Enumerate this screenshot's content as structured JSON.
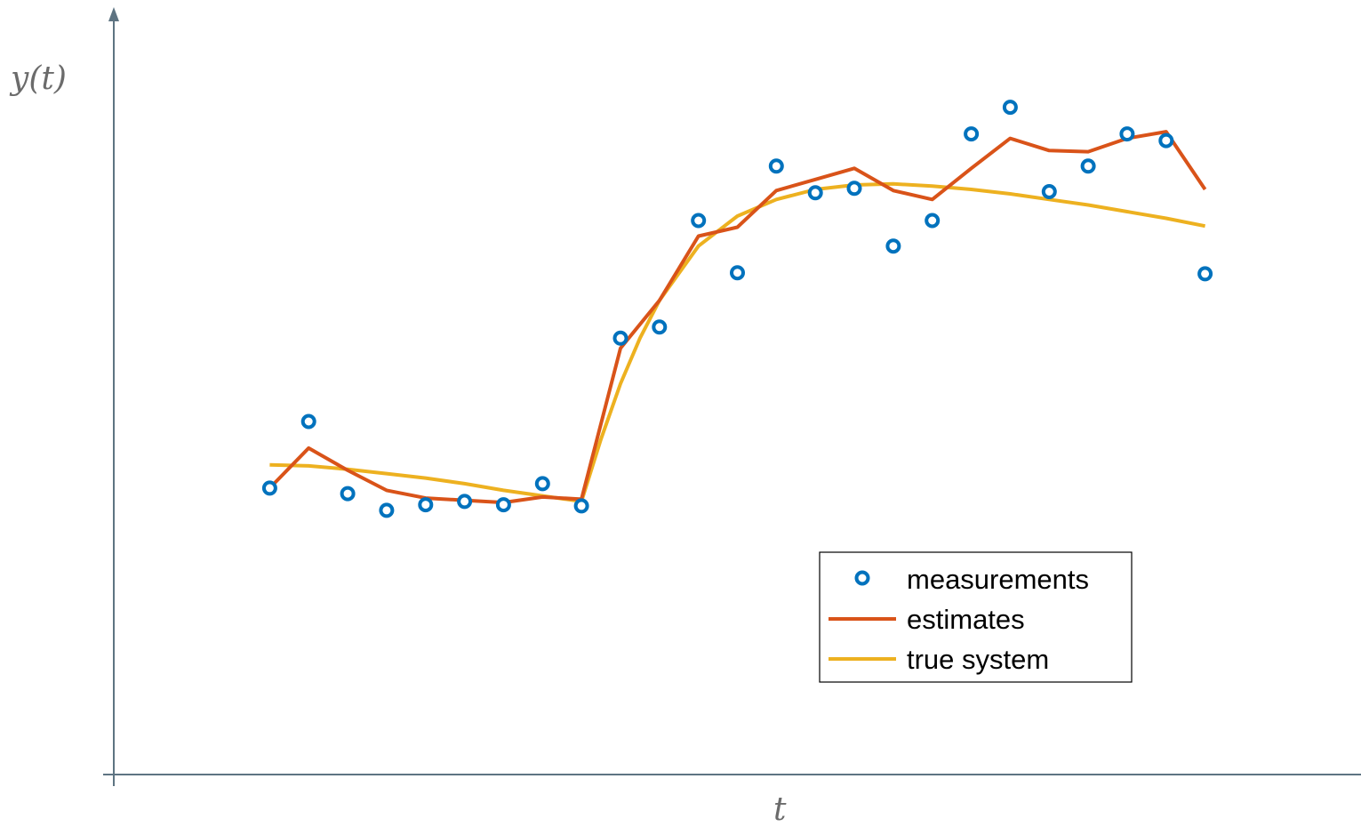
{
  "chart_data": {
    "type": "line",
    "title": "",
    "xlabel": "t",
    "ylabel": "y(t)",
    "xlim": [
      -4,
      28
    ],
    "ylim": [
      -2.6,
      4.2
    ],
    "axis_ticks": false,
    "grid": false,
    "legend_position": "lower-right",
    "series": [
      {
        "name": "measurements",
        "kind": "markers",
        "marker": "circle-open",
        "color": "#0072BD",
        "x": [
          0,
          1,
          2,
          3,
          4,
          5,
          6,
          7,
          8,
          9,
          10,
          11,
          12,
          13,
          14,
          15,
          16,
          17,
          18,
          19,
          20,
          21,
          22,
          23,
          24
        ],
        "y": [
          -0.02,
          0.58,
          -0.07,
          -0.22,
          -0.17,
          -0.14,
          -0.17,
          0.02,
          -0.18,
          1.33,
          1.43,
          2.39,
          1.92,
          2.88,
          2.64,
          2.68,
          2.16,
          2.39,
          3.17,
          3.41,
          2.65,
          2.88,
          3.17,
          3.11,
          1.91
        ]
      },
      {
        "name": "estimates",
        "kind": "line",
        "color": "#D95319",
        "x": [
          0,
          1,
          2,
          3,
          4,
          5,
          6,
          7,
          8,
          9,
          10,
          11,
          12,
          13,
          14,
          15,
          16,
          17,
          18,
          19,
          20,
          21,
          22,
          23,
          24
        ],
        "y": [
          -0.02,
          0.34,
          0.14,
          -0.04,
          -0.11,
          -0.13,
          -0.15,
          -0.1,
          -0.12,
          1.24,
          1.67,
          2.25,
          2.33,
          2.66,
          2.76,
          2.86,
          2.66,
          2.58,
          2.86,
          3.13,
          3.02,
          3.01,
          3.13,
          3.19,
          2.67
        ]
      },
      {
        "name": "true system",
        "kind": "line",
        "color": "#EDB120",
        "x": [
          0,
          1,
          2,
          3,
          4,
          5,
          6,
          7,
          8,
          8.5,
          9,
          9.5,
          10,
          11,
          12,
          13,
          14,
          15,
          16,
          17,
          18,
          19,
          20,
          21,
          22,
          23,
          24
        ],
        "y": [
          0.19,
          0.18,
          0.15,
          0.11,
          0.07,
          0.02,
          -0.04,
          -0.09,
          -0.14,
          0.42,
          0.92,
          1.33,
          1.67,
          2.16,
          2.43,
          2.58,
          2.67,
          2.71,
          2.72,
          2.7,
          2.67,
          2.63,
          2.58,
          2.53,
          2.47,
          2.41,
          2.34
        ]
      }
    ]
  },
  "colors": {
    "axis": "#5e7482",
    "legend_border": "#000000",
    "label": "#6b6b6b"
  }
}
